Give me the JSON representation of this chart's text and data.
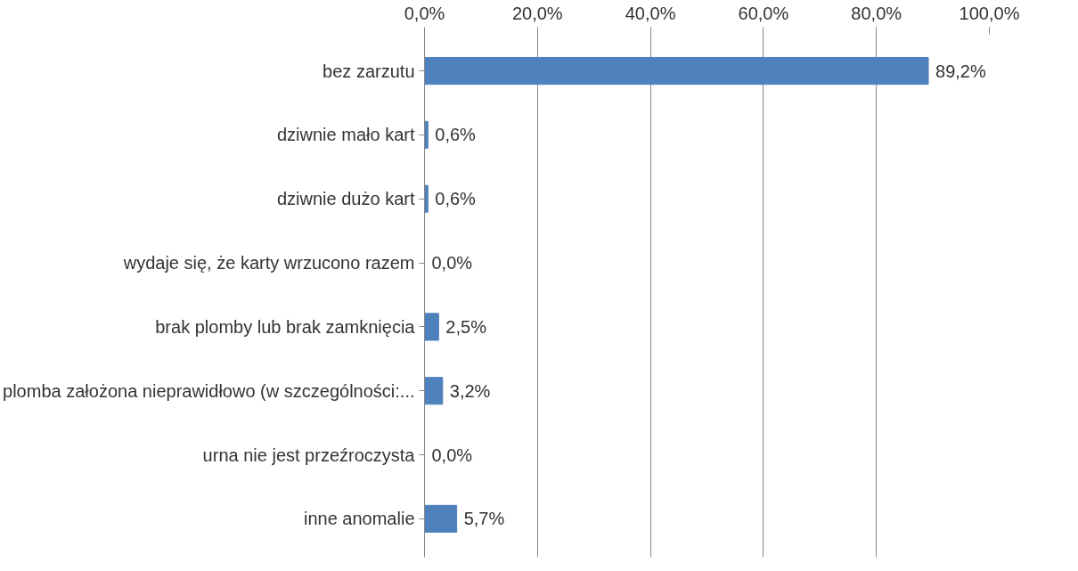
{
  "chart_data": {
    "type": "bar",
    "orientation": "horizontal",
    "categories": [
      "bez zarzutu",
      "dziwnie mało kart",
      "dziwnie dużo kart",
      "wydaje się, że karty wrzucono razem",
      "brak plomby lub brak zamknięcia",
      "plomba założona nieprawidłowo (w szczególności:...",
      "urna nie jest przeźroczysta",
      "inne anomalie"
    ],
    "values": [
      89.2,
      0.6,
      0.6,
      0.0,
      2.5,
      3.2,
      0.0,
      5.7
    ],
    "value_labels": [
      "89,2%",
      "0,6%",
      "0,6%",
      "0,0%",
      "2,5%",
      "3,2%",
      "0,0%",
      "5,7%"
    ],
    "color": "#4f81bd",
    "xlim": [
      0,
      100
    ],
    "xticks": [
      {
        "value": 0,
        "label": "0,0%"
      },
      {
        "value": 20,
        "label": "20,0%"
      },
      {
        "value": 40,
        "label": "40,0%"
      },
      {
        "value": 60,
        "label": "60,0%"
      },
      {
        "value": 80,
        "label": "80,0%"
      },
      {
        "value": 100,
        "label": "100,0%"
      }
    ],
    "grid": "x"
  }
}
